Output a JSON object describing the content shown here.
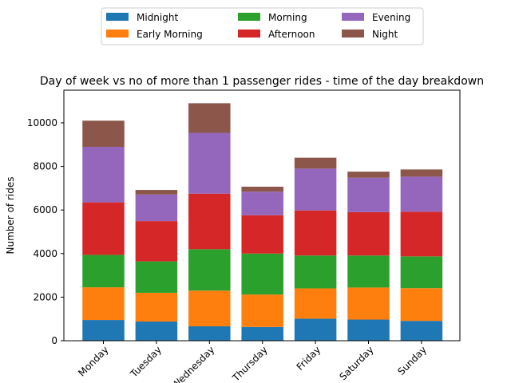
{
  "chart_data": {
    "type": "bar",
    "stacked": true,
    "title": "Day of week vs no of more than 1 passenger rides - time of the day breakdown",
    "xlabel": "",
    "ylabel": "Number of rides",
    "ylim": [
      0,
      11500
    ],
    "yticks": [
      0,
      2000,
      4000,
      6000,
      8000,
      10000
    ],
    "grid": false,
    "legend": {
      "position": "top-center",
      "columns": 3
    },
    "categories": [
      "Monday",
      "Tuesday",
      "Wednesday",
      "Thursday",
      "Friday",
      "Saturday",
      "Sunday"
    ],
    "series": [
      {
        "name": "Midnight",
        "color": "#1f77b4",
        "values": [
          950,
          880,
          660,
          630,
          1010,
          970,
          910
        ]
      },
      {
        "name": "Early Morning",
        "color": "#ff7f0e",
        "values": [
          1500,
          1320,
          1640,
          1490,
          1390,
          1470,
          1500
        ]
      },
      {
        "name": "Morning",
        "color": "#2ca02c",
        "values": [
          1490,
          1440,
          1900,
          1880,
          1510,
          1470,
          1460
        ]
      },
      {
        "name": "Afternoon",
        "color": "#d62728",
        "values": [
          2410,
          1850,
          2550,
          1760,
          2070,
          1990,
          2050
        ]
      },
      {
        "name": "Evening",
        "color": "#9467bd",
        "values": [
          2550,
          1220,
          2790,
          1080,
          1920,
          1580,
          1610
        ]
      },
      {
        "name": "Night",
        "color": "#8c564b",
        "values": [
          1200,
          210,
          1360,
          230,
          500,
          280,
          330
        ]
      }
    ]
  }
}
